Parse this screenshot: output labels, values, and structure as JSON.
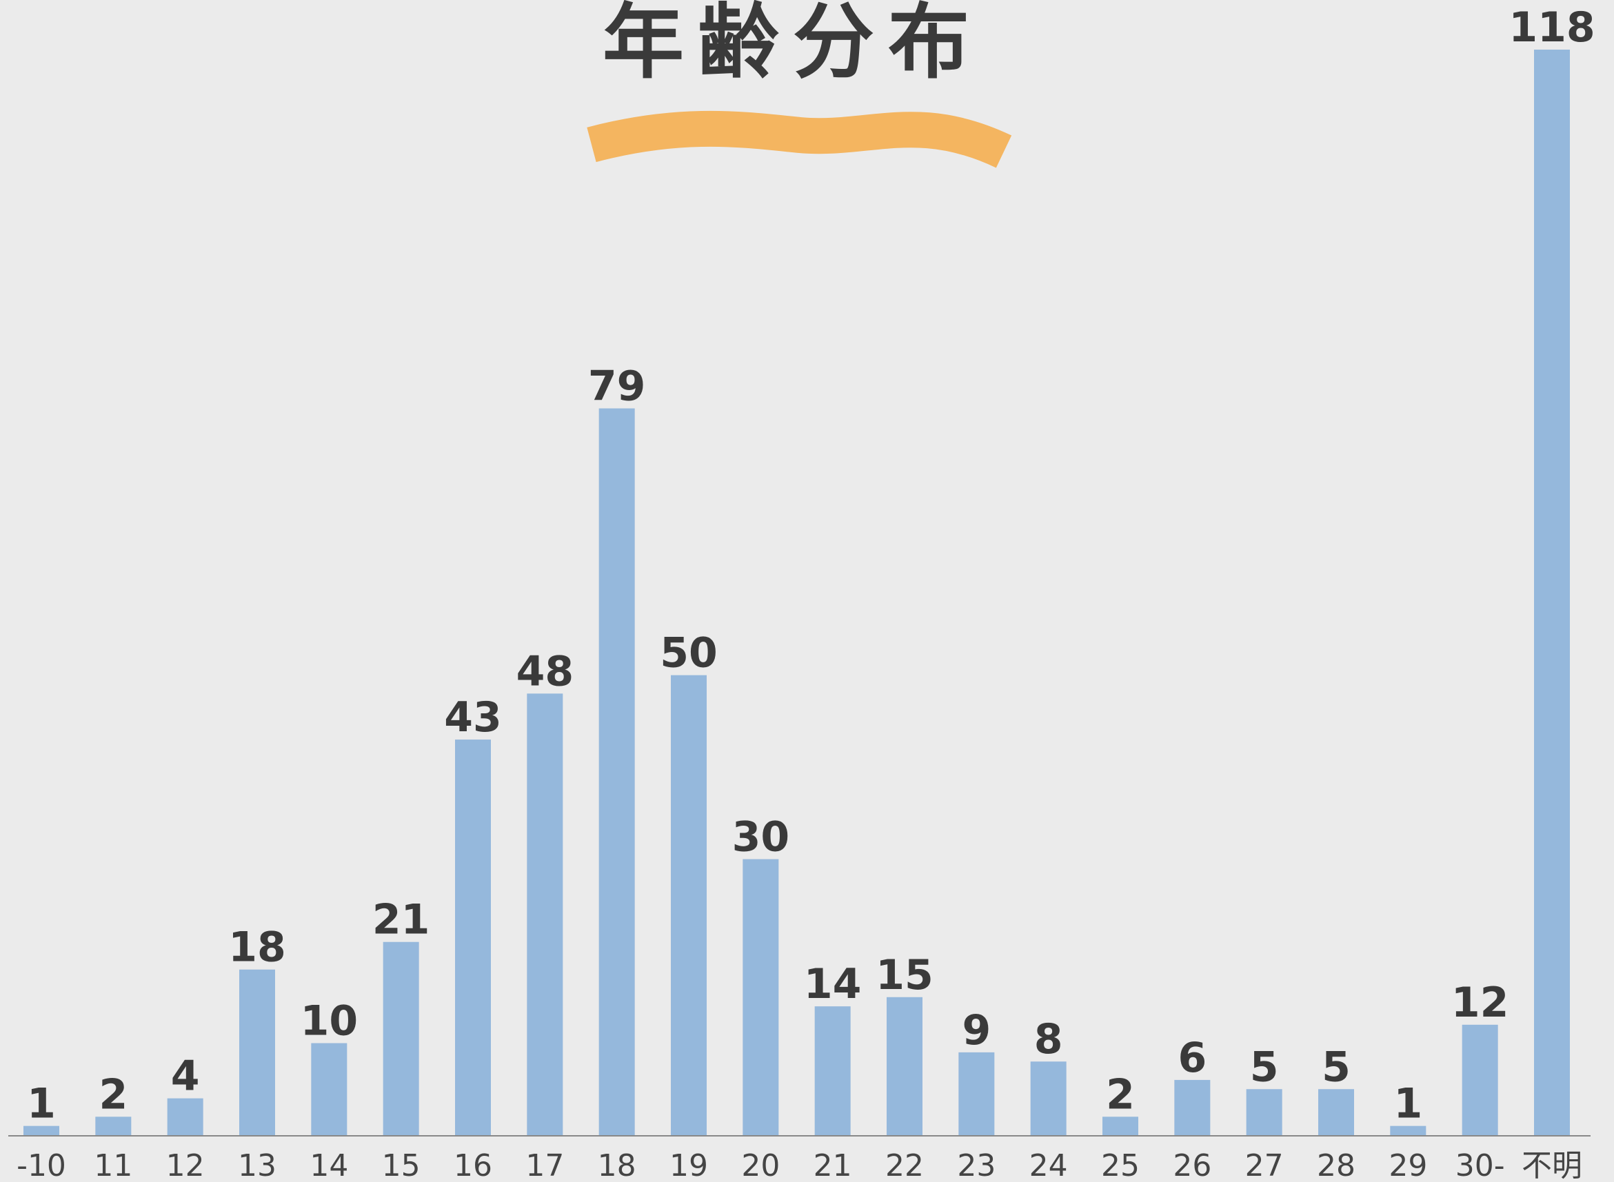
{
  "chart_data": {
    "type": "bar",
    "title": "年齢分布",
    "categories": [
      "-10",
      "11",
      "12",
      "13",
      "14",
      "15",
      "16",
      "17",
      "18",
      "19",
      "20",
      "21",
      "22",
      "23",
      "24",
      "25",
      "26",
      "27",
      "28",
      "29",
      "30-",
      "不明"
    ],
    "values": [
      1,
      2,
      4,
      18,
      10,
      21,
      43,
      48,
      79,
      50,
      30,
      14,
      15,
      9,
      8,
      2,
      6,
      5,
      5,
      1,
      12,
      118
    ],
    "color": "#95b8dc"
  }
}
